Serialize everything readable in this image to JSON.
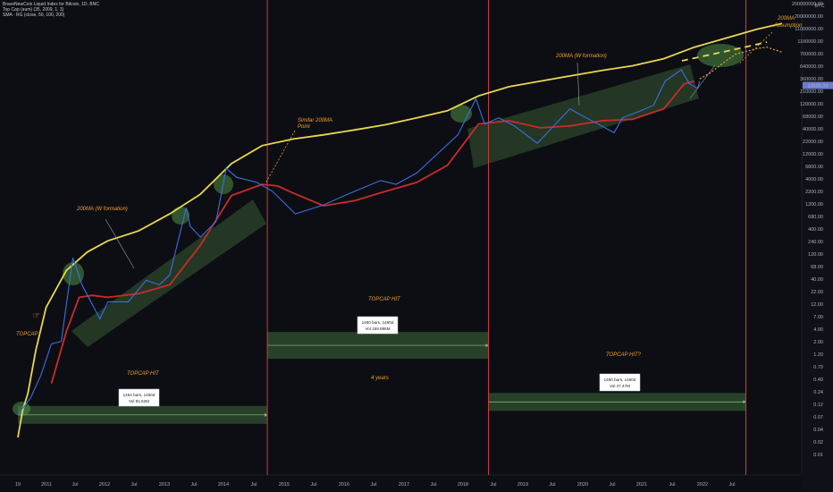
{
  "legend": {
    "symbol_line": "BraveNewCoin Liquid Index for Bitcoin, 1D, BNC",
    "indicator_topcap": "Top Cap (aum) (35, 2009, 1, 3)",
    "indicator_sma": "SMA - RG (close, 50, 100, 200)"
  },
  "y_axis": {
    "unit_label": "BTC",
    "ticks": [
      "200000000.00",
      "20000000.00",
      "11000000.00",
      "1100000.00",
      "700000.00",
      "640000.00",
      "360000.00",
      "210000.00",
      "120000.00",
      "68000.00",
      "40000.00",
      "22000.00",
      "12000.00",
      "6800.00",
      "4000.00",
      "2200.00",
      "1200.00",
      "680.00",
      "400.00",
      "240.00",
      "120.00",
      "68.00",
      "40.00",
      "22.00",
      "12.00",
      "7.00",
      "4.00",
      "2.00",
      "1.20",
      "0.70",
      "0.40",
      "0.24",
      "0.12",
      "0.07",
      "0.04",
      "0.02",
      "0.01"
    ],
    "price_tag": "33696.34",
    "price_tag_color": "#6c7bd0"
  },
  "x_axis": {
    "ticks": [
      "19",
      "2011",
      "Jul",
      "2012",
      "Jul",
      "2013",
      "Jul",
      "2014",
      "Jul",
      "2015",
      "Jul",
      "2016",
      "Jul",
      "2017",
      "Jul",
      "2018",
      "Jul",
      "2019",
      "Jul",
      "2020",
      "Jul",
      "2021",
      "Jul",
      "2022",
      "Jul"
    ]
  },
  "annotations": {
    "topcap": "TOPCAP",
    "topcap_hit_1": "TOPCAP HIT",
    "topcap_hit_2": "TOPCAP HIT",
    "topcap_hit_3": "TOPCAP HIT?",
    "ma_w_1": "200MA (W formation)",
    "ma_w_2": "200MA (W formation)",
    "similar_line1": "Similar 200MA",
    "similar_line2": "Point",
    "assumption_line1": "200MA",
    "assumption_line2": "Assumption",
    "four_years": "4 years",
    "box1_line1": "1454 bars, 1460d",
    "box1_line2": "Vol 81.62M",
    "box2_line1": "1460 bars, 1460d",
    "box2_line2": "Vol 159.896M",
    "box3_line1": "1460 bars, 1460d",
    "box3_line2": "Vol 47.47M"
  },
  "colors": {
    "background": "#0d0e13",
    "price": "#3a6fe0",
    "topcap": "#e8d650",
    "sma200": "#cc2a2a",
    "channel": "#3d6b3a",
    "vline": "#d13a3a",
    "annotation_orange": "#f0a030"
  },
  "chart_data": {
    "type": "line",
    "y_scale": "log",
    "x_unit": "date",
    "series": [
      {
        "name": "Top Cap (aum) (35, 2009, 1, 3)",
        "points": [
          [
            "2010-07-18",
            0.02
          ],
          [
            "2010-08-15",
            0.06
          ],
          [
            "2010-09-15",
            0.12
          ],
          [
            "2010-11-01",
            0.7
          ],
          [
            "2011-01-01",
            4
          ],
          [
            "2011-05-01",
            18
          ],
          [
            "2011-09-01",
            38
          ],
          [
            "2012-01-01",
            60
          ],
          [
            "2012-07-01",
            90
          ],
          [
            "2013-01-01",
            180
          ],
          [
            "2013-07-01",
            400
          ],
          [
            "2014-01-01",
            1400
          ],
          [
            "2014-07-01",
            2900
          ],
          [
            "2015-01-01",
            3800
          ],
          [
            "2015-07-01",
            4500
          ],
          [
            "2016-01-01",
            5500
          ],
          [
            "2016-07-01",
            6800
          ],
          [
            "2017-01-01",
            9000
          ],
          [
            "2017-07-01",
            12000
          ],
          [
            "2018-01-01",
            22000
          ],
          [
            "2018-07-01",
            32000
          ],
          [
            "2019-01-01",
            40000
          ],
          [
            "2019-07-01",
            50000
          ],
          [
            "2020-01-01",
            62000
          ],
          [
            "2020-07-01",
            75000
          ],
          [
            "2021-01-01",
            100000
          ],
          [
            "2021-07-01",
            160000
          ],
          [
            "2022-01-01",
            230000
          ],
          [
            "2022-07-01",
            330000
          ],
          [
            "2022-12-01",
            420000
          ]
        ]
      },
      {
        "name": "SMA - RG (close, 50, 100, 200)",
        "points": [
          [
            "2011-02-01",
            0.18
          ],
          [
            "2011-05-01",
            1.5
          ],
          [
            "2011-07-15",
            6
          ],
          [
            "2011-10-01",
            6.5
          ],
          [
            "2012-01-01",
            6
          ],
          [
            "2012-07-01",
            7
          ],
          [
            "2013-01-01",
            10
          ],
          [
            "2013-07-01",
            50
          ],
          [
            "2014-01-01",
            380
          ],
          [
            "2014-07-01",
            600
          ],
          [
            "2014-10-01",
            560
          ],
          [
            "2015-01-01",
            420
          ],
          [
            "2015-07-01",
            250
          ],
          [
            "2016-01-01",
            310
          ],
          [
            "2016-07-01",
            450
          ],
          [
            "2017-01-01",
            650
          ],
          [
            "2017-07-01",
            1300
          ],
          [
            "2018-01-01",
            7000
          ],
          [
            "2018-07-01",
            8000
          ],
          [
            "2019-01-01",
            6000
          ],
          [
            "2019-07-01",
            6500
          ],
          [
            "2020-01-01",
            8000
          ],
          [
            "2020-07-01",
            8500
          ],
          [
            "2021-01-01",
            13000
          ],
          [
            "2021-05-01",
            36000
          ],
          [
            "2021-07-01",
            40000
          ]
        ]
      },
      {
        "name": "BraveNewCoin Liquid Index for Bitcoin",
        "points": [
          [
            "2010-07-18",
            0.05
          ],
          [
            "2010-10-01",
            0.1
          ],
          [
            "2010-12-01",
            0.25
          ],
          [
            "2011-02-01",
            0.9
          ],
          [
            "2011-04-01",
            1
          ],
          [
            "2011-06-08",
            30
          ],
          [
            "2011-08-01",
            10
          ],
          [
            "2011-11-15",
            2.5
          ],
          [
            "2012-01-01",
            5
          ],
          [
            "2012-05-01",
            5
          ],
          [
            "2012-08-15",
            12
          ],
          [
            "2012-11-01",
            10
          ],
          [
            "2013-01-01",
            15
          ],
          [
            "2013-04-09",
            230
          ],
          [
            "2013-05-01",
            110
          ],
          [
            "2013-07-01",
            70
          ],
          [
            "2013-10-01",
            130
          ],
          [
            "2013-12-01",
            1150
          ],
          [
            "2014-02-01",
            800
          ],
          [
            "2014-06-01",
            650
          ],
          [
            "2014-09-01",
            450
          ],
          [
            "2015-01-14",
            180
          ],
          [
            "2015-07-01",
            260
          ],
          [
            "2015-11-01",
            380
          ],
          [
            "2016-06-01",
            700
          ],
          [
            "2016-09-01",
            600
          ],
          [
            "2017-01-01",
            950
          ],
          [
            "2017-06-01",
            2500
          ],
          [
            "2017-09-01",
            4500
          ],
          [
            "2017-12-17",
            19500
          ],
          [
            "2018-02-06",
            7000
          ],
          [
            "2018-05-01",
            9000
          ],
          [
            "2018-08-01",
            6500
          ],
          [
            "2018-12-15",
            3200
          ],
          [
            "2019-06-26",
            13000
          ],
          [
            "2019-09-01",
            10000
          ],
          [
            "2019-12-01",
            7200
          ],
          [
            "2020-03-13",
            4900
          ],
          [
            "2020-05-01",
            9000
          ],
          [
            "2020-08-01",
            11500
          ],
          [
            "2020-11-01",
            15000
          ],
          [
            "2021-01-08",
            40000
          ],
          [
            "2021-04-14",
            64000
          ],
          [
            "2021-06-01",
            36000
          ],
          [
            "2021-07-20",
            30000
          ],
          [
            "2021-08-01",
            40000
          ]
        ]
      },
      {
        "name": "",
        "points": [
          [
            "2021-08-01",
            44000
          ],
          [
            "2021-10-01",
            56000
          ],
          [
            "2022-01-01",
            90000
          ],
          [
            "2022-03-01",
            120000
          ],
          [
            "2022-07-01",
            150000
          ],
          [
            "2022-09-01",
            160000
          ],
          [
            "2022-12-01",
            130000
          ]
        ]
      }
    ],
    "vertical_markers": [
      "2014-08-01",
      "2018-03-01",
      "2022-05-01"
    ],
    "ranges": [
      {
        "from": "2010-07-18",
        "to": "2014-08-01",
        "value": 0.05,
        "label": "1454 bars, 1460d",
        "vol": "Vol 81.62M"
      },
      {
        "from": "2014-08-01",
        "to": "2018-03-01",
        "value": 0.85,
        "label": "1460 bars, 1460d",
        "vol": "Vol 159.896M"
      },
      {
        "from": "2018-03-01",
        "to": "2022-05-01",
        "value": 0.085,
        "label": "1460 bars, 1460d",
        "vol": "Vol 47.47M"
      }
    ]
  }
}
